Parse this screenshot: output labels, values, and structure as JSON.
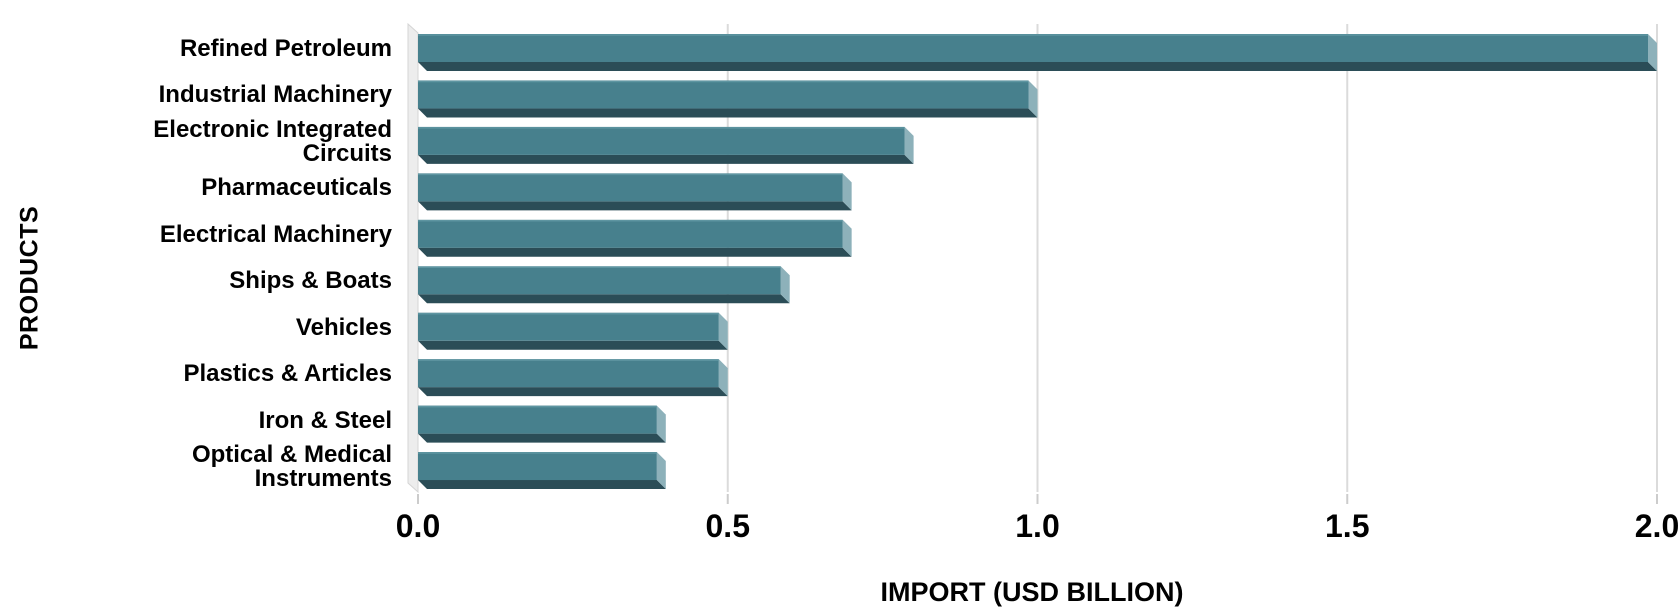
{
  "chart_data": {
    "type": "bar",
    "orientation": "horizontal",
    "xlabel": "IMPORT (USD BILLION)",
    "ylabel": "PRODUCTS",
    "categories": [
      "Refined Petroleum",
      "Industrial Machinery",
      "Electronic Integrated\nCircuits",
      "Pharmaceuticals",
      "Electrical Machinery",
      "Ships & Boats",
      "Vehicles",
      "Plastics & Articles",
      "Iron & Steel",
      "Optical & Medical\nInstruments"
    ],
    "values": [
      2.0,
      1.0,
      0.8,
      0.7,
      0.7,
      0.6,
      0.5,
      0.5,
      0.4,
      0.4
    ],
    "xlim": [
      0.0,
      2.0
    ],
    "x_tick_labels": [
      "0.0",
      "0.5",
      "1.0",
      "1.5",
      "2.0"
    ],
    "x_tick_values": [
      0.0,
      0.5,
      1.0,
      1.5,
      2.0
    ],
    "grid": "vertical",
    "legend": false,
    "colors": {
      "bar_face": "#47808D",
      "bar_face_highlight": "#5E95A1",
      "bar_bottom": "#2B4D57",
      "bar_side": "#8DB1BA",
      "wall_fill": "#EDEDED",
      "wall_edge": "#D5D5D5",
      "gridline": "#DBDBDB",
      "tick_mark": "#CCCCCC",
      "text": "#000000",
      "background": "#FFFFFF"
    }
  }
}
